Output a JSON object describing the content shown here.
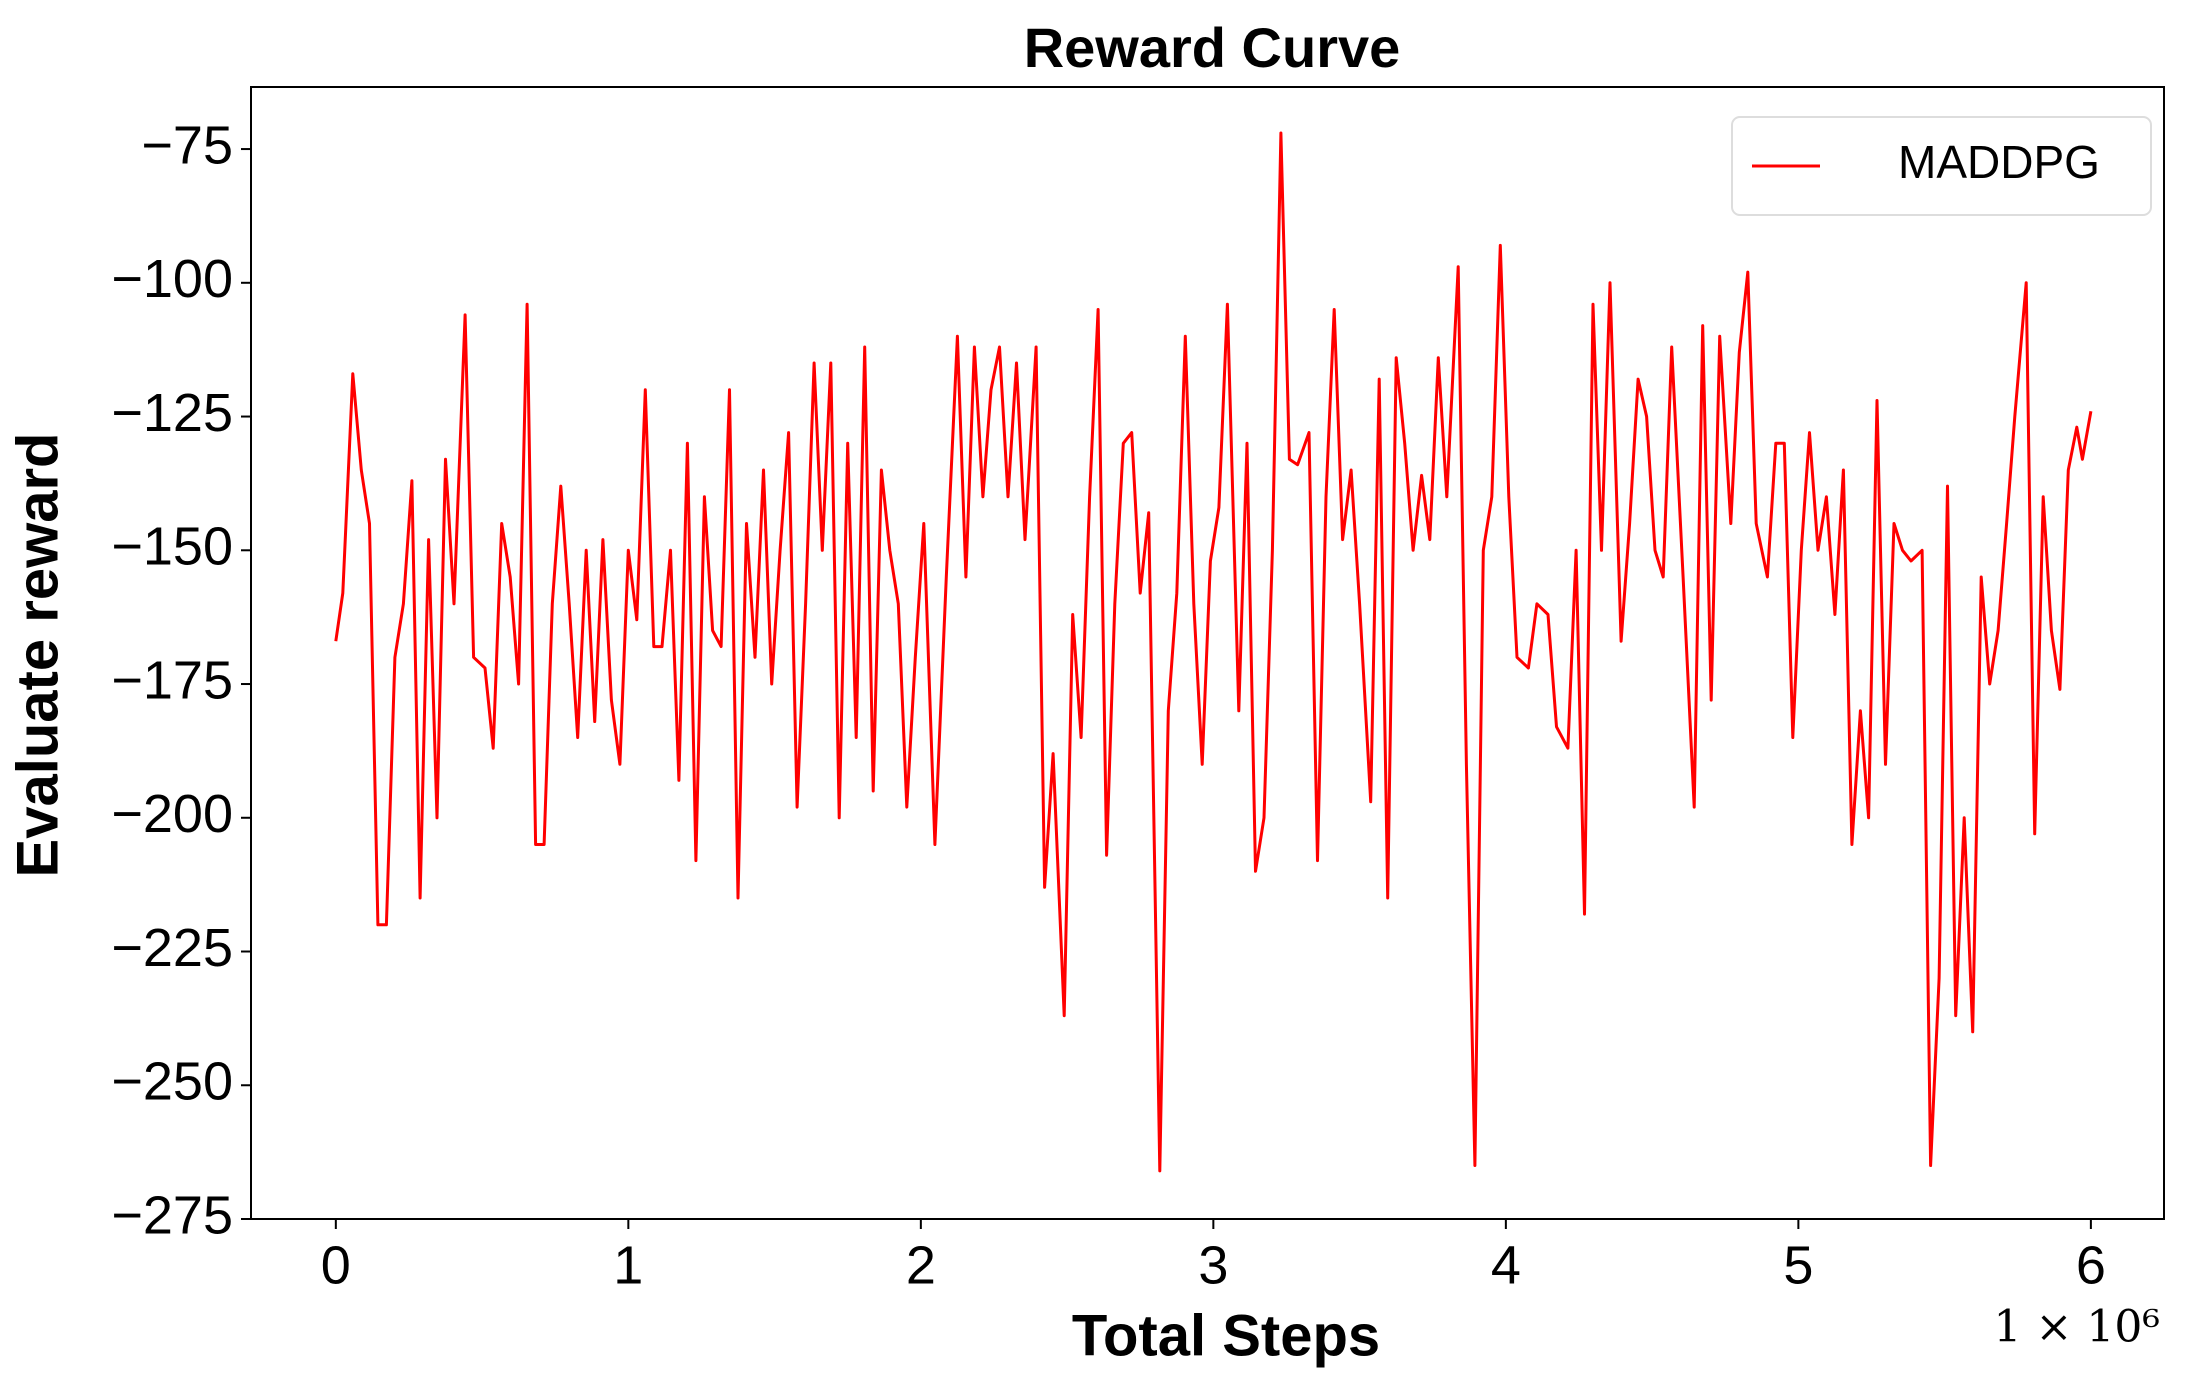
{
  "chart_data": {
    "type": "line",
    "title": "Reward Curve",
    "x_label": "Total  Steps",
    "y_label": "Evaluate reward",
    "x_multiplier": "1 × 10⁶",
    "xlim": [
      -0.29,
      6.25
    ],
    "ylim": [
      -275,
      -63.4
    ],
    "xticks": [
      0,
      1,
      2,
      3,
      4,
      5,
      6
    ],
    "yticks": [
      {
        "value": -275,
        "label": "−275"
      },
      {
        "value": -250,
        "label": "−250"
      },
      {
        "value": -225,
        "label": "−225"
      },
      {
        "value": -200,
        "label": "−200"
      },
      {
        "value": -175,
        "label": "−175"
      },
      {
        "value": -150,
        "label": "−150"
      },
      {
        "value": -125,
        "label": "−125"
      },
      {
        "value": -100,
        "label": "−100"
      },
      {
        "value": -75,
        "label": "−75"
      }
    ],
    "grid": false,
    "legend": "upper right",
    "x": [
      0,
      0.024,
      0.058,
      0.087,
      0.115,
      0.144,
      0.173,
      0.202,
      0.231,
      0.26,
      0.288,
      0.317,
      0.346,
      0.375,
      0.404,
      0.442,
      0.471,
      0.51,
      0.538,
      0.567,
      0.596,
      0.625,
      0.654,
      0.683,
      0.712,
      0.74,
      0.769,
      0.798,
      0.827,
      0.856,
      0.885,
      0.913,
      0.942,
      0.971,
      1.0,
      1.029,
      1.058,
      1.087,
      1.115,
      1.144,
      1.173,
      1.202,
      1.231,
      1.26,
      1.288,
      1.317,
      1.346,
      1.375,
      1.404,
      1.433,
      1.462,
      1.49,
      1.519,
      1.548,
      1.577,
      1.606,
      1.635,
      1.663,
      1.692,
      1.721,
      1.75,
      1.779,
      1.808,
      1.837,
      1.865,
      1.894,
      1.923,
      1.952,
      1.981,
      2.01,
      2.048,
      2.087,
      2.125,
      2.154,
      2.183,
      2.212,
      2.24,
      2.269,
      2.298,
      2.327,
      2.356,
      2.394,
      2.423,
      2.452,
      2.49,
      2.519,
      2.548,
      2.577,
      2.606,
      2.635,
      2.663,
      2.692,
      2.721,
      2.75,
      2.779,
      2.817,
      2.846,
      2.875,
      2.904,
      2.933,
      2.962,
      2.99,
      3.019,
      3.048,
      3.087,
      3.115,
      3.144,
      3.173,
      3.202,
      3.231,
      3.26,
      3.288,
      3.327,
      3.356,
      3.385,
      3.413,
      3.442,
      3.471,
      3.5,
      3.538,
      3.567,
      3.596,
      3.625,
      3.654,
      3.683,
      3.712,
      3.74,
      3.769,
      3.798,
      3.837,
      3.865,
      3.894,
      3.923,
      3.952,
      3.981,
      4.01,
      4.038,
      4.077,
      4.106,
      4.144,
      4.173,
      4.212,
      4.24,
      4.269,
      4.298,
      4.327,
      4.356,
      4.394,
      4.423,
      4.452,
      4.481,
      4.51,
      4.538,
      4.567,
      4.606,
      4.644,
      4.673,
      4.702,
      4.731,
      4.769,
      4.798,
      4.827,
      4.856,
      4.894,
      4.923,
      4.952,
      4.981,
      5.01,
      5.038,
      5.067,
      5.096,
      5.125,
      5.154,
      5.183,
      5.212,
      5.24,
      5.269,
      5.298,
      5.327,
      5.356,
      5.385,
      5.423,
      5.452,
      5.481,
      5.51,
      5.538,
      5.567,
      5.596,
      5.625,
      5.654,
      5.683,
      5.712,
      5.74,
      5.779,
      5.808,
      5.837,
      5.865,
      5.894,
      5.923,
      5.952,
      5.971,
      6.0
    ],
    "series": [
      {
        "name": "MADDPG",
        "color": "#ff0000",
        "values": [
          -167,
          -158,
          -117,
          -135,
          -145,
          -220,
          -220,
          -170,
          -160,
          -137,
          -215,
          -148,
          -200,
          -133,
          -160,
          -106,
          -170,
          -172,
          -187,
          -145,
          -155,
          -175,
          -104,
          -205,
          -205,
          -160,
          -138,
          -160,
          -185,
          -150,
          -182,
          -148,
          -178,
          -190,
          -150,
          -163,
          -120,
          -168,
          -168,
          -150,
          -193,
          -130,
          -208,
          -140,
          -165,
          -168,
          -120,
          -215,
          -145,
          -170,
          -135,
          -175,
          -150,
          -128,
          -198,
          -160,
          -115,
          -150,
          -115,
          -200,
          -130,
          -185,
          -112,
          -195,
          -135,
          -150,
          -160,
          -198,
          -170,
          -145,
          -205,
          -155,
          -110,
          -155,
          -112,
          -140,
          -120,
          -112,
          -140,
          -115,
          -148,
          -112,
          -213,
          -188,
          -237,
          -162,
          -185,
          -140,
          -105,
          -207,
          -160,
          -130,
          -128,
          -158,
          -143,
          -266,
          -180,
          -158,
          -110,
          -160,
          -190,
          -152,
          -142,
          -104,
          -180,
          -130,
          -210,
          -200,
          -150,
          -72,
          -133,
          -134,
          -128,
          -208,
          -140,
          -105,
          -148,
          -135,
          -160,
          -197,
          -118,
          -215,
          -114,
          -130,
          -150,
          -136,
          -148,
          -114,
          -140,
          -97,
          -190,
          -265,
          -150,
          -140,
          -93,
          -140,
          -170,
          -172,
          -160,
          -162,
          -183,
          -187,
          -150,
          -218,
          -104,
          -150,
          -100,
          -167,
          -145,
          -118,
          -125,
          -150,
          -155,
          -112,
          -155,
          -198,
          -108,
          -178,
          -110,
          -145,
          -113,
          -98,
          -145,
          -155,
          -130,
          -130,
          -185,
          -150,
          -128,
          -150,
          -140,
          -162,
          -135,
          -205,
          -180,
          -200,
          -122,
          -190,
          -145,
          -150,
          -152,
          -150,
          -265,
          -230,
          -138,
          -237,
          -200,
          -240,
          -155,
          -175,
          -165,
          -145,
          -125,
          -100,
          -203,
          -140,
          -165,
          -176,
          -135,
          -127,
          -133,
          -124
        ]
      }
    ]
  }
}
